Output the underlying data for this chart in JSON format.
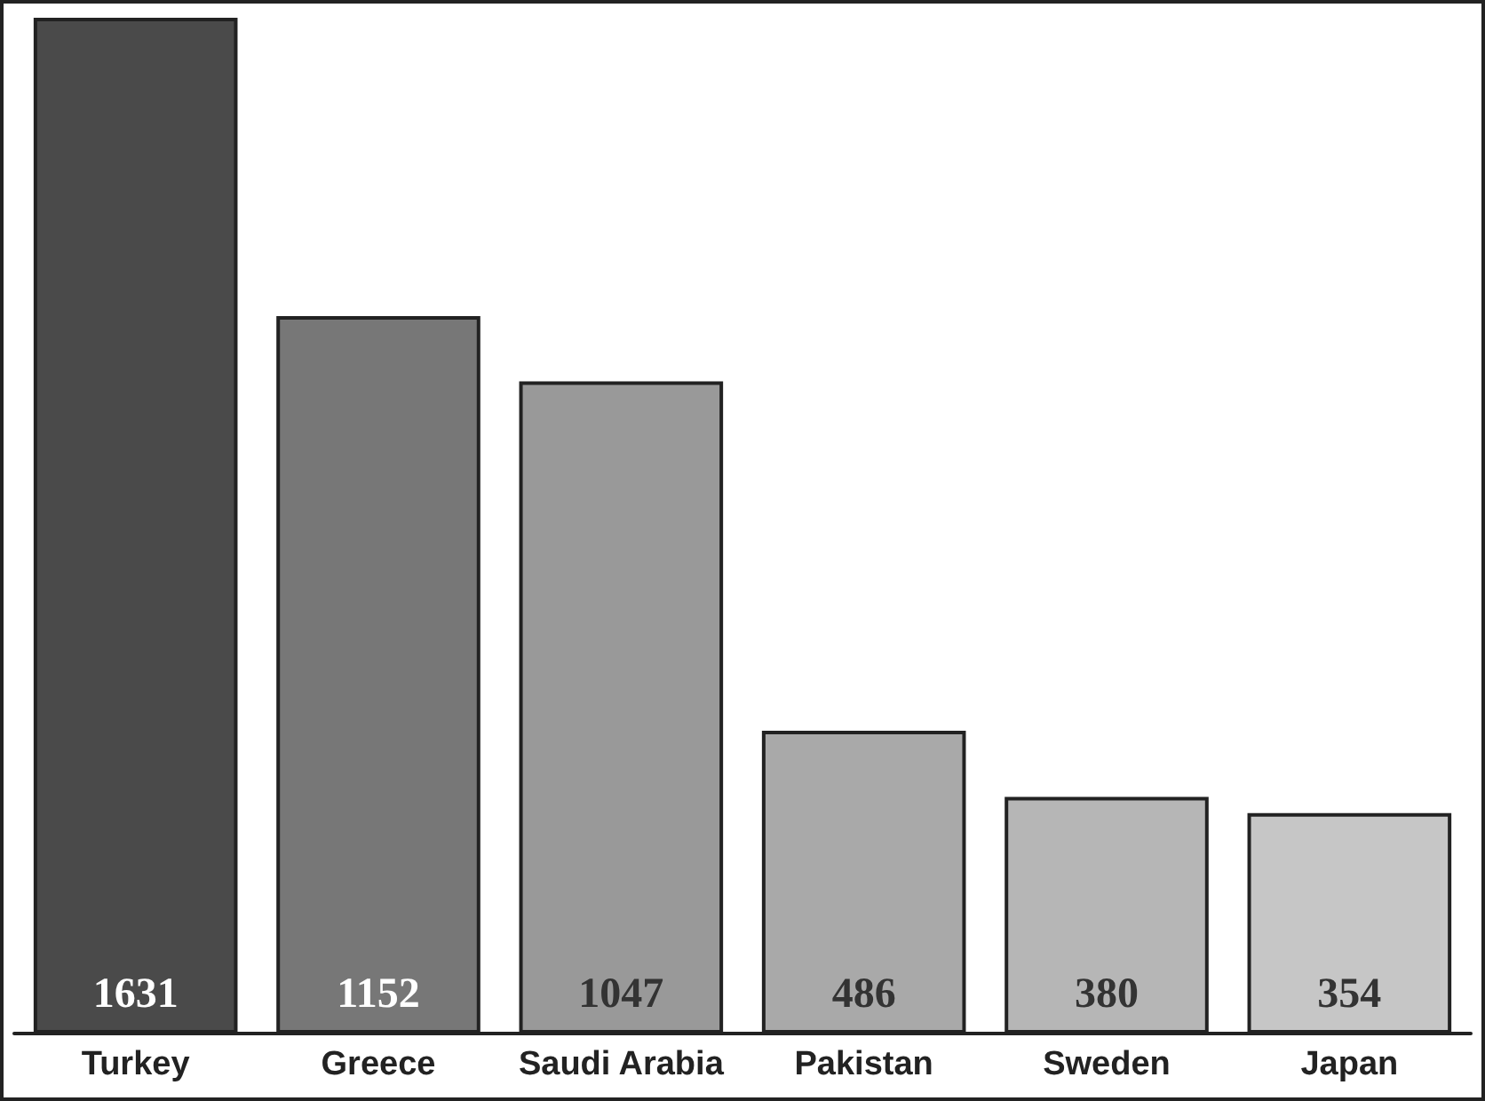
{
  "chart_data": {
    "type": "bar",
    "categories": [
      "Turkey",
      "Greece",
      "Saudi Arabia",
      "Pakistan",
      "Sweden",
      "Japan"
    ],
    "values": [
      1631,
      1152,
      1047,
      486,
      380,
      354
    ],
    "colors": [
      "#4a4a4a",
      "#777777",
      "#999999",
      "#a9a9a9",
      "#b6b6b6",
      "#c6c6c6"
    ],
    "data_labels": true
  }
}
